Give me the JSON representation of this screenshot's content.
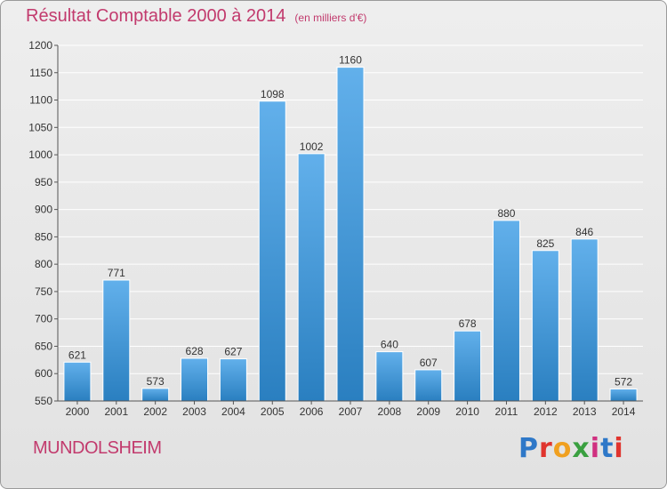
{
  "header": {
    "title": "Résultat Comptable 2000 à 2014",
    "unit": "(en milliers d'€)"
  },
  "footer": {
    "town": "MUNDOLSHEIM",
    "logo_text": "Proxiti"
  },
  "colors": {
    "title": "#c23a6d",
    "bar_top": "#62b0eb",
    "bar_bottom": "#2a7fc0",
    "grid": "#ffffff",
    "logo": [
      "#2e78c8",
      "#e0342e",
      "#f0a020",
      "#3aa040",
      "#d03080",
      "#2e78c8",
      "#e0342e"
    ]
  },
  "chart_data": {
    "type": "bar",
    "categories": [
      "2000",
      "2001",
      "2002",
      "2003",
      "2004",
      "2005",
      "2006",
      "2007",
      "2008",
      "2009",
      "2010",
      "2011",
      "2012",
      "2013",
      "2014"
    ],
    "values": [
      621,
      771,
      573,
      628,
      627,
      1098,
      1002,
      1160,
      640,
      607,
      678,
      880,
      825,
      846,
      572
    ],
    "data_labels": [
      "621",
      "771",
      "573",
      "628",
      "627",
      "1098",
      "1002",
      "1160",
      "640",
      "607",
      "678",
      "880",
      "825",
      "846",
      "572"
    ],
    "ylim": [
      550,
      1200
    ],
    "yticks": [
      550,
      600,
      650,
      700,
      750,
      800,
      850,
      900,
      950,
      1000,
      1050,
      1100,
      1150,
      1200
    ],
    "grid": true,
    "title": "Résultat Comptable 2000 à 2014",
    "xlabel": "",
    "ylabel": ""
  }
}
